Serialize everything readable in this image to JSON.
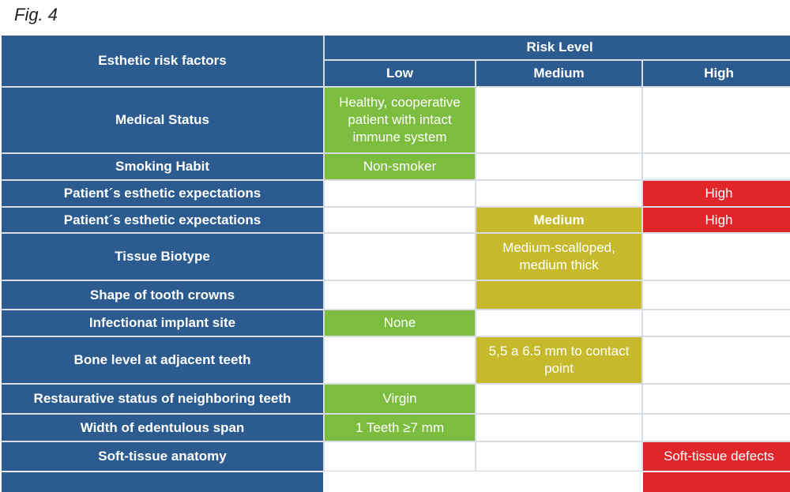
{
  "figure_label": "Fig. 4",
  "header": {
    "factors": "Esthetic risk factors",
    "risk_level": "Risk Level",
    "low": "Low",
    "medium": "Medium",
    "high": "High"
  },
  "colors": {
    "header_blue": "#2b5b8f",
    "low_green": "#7cbd3f",
    "medium_olive": "#c6ba2c",
    "high_red": "#e1262b"
  },
  "rows": [
    {
      "factor": "Medical Status",
      "low": "Healthy, cooperative patient with intact immune system",
      "medium": "",
      "high": ""
    },
    {
      "factor": "Smoking Habit",
      "low": "Non-smoker",
      "medium": "",
      "high": ""
    },
    {
      "factor": "Patient´s esthetic expectations",
      "low": "",
      "medium": "",
      "high": "High"
    },
    {
      "factor": "Patient´s esthetic expectations",
      "low": "",
      "medium": "Medium",
      "high": "High"
    },
    {
      "factor": "Tissue Biotype",
      "low": "",
      "medium": "Medium-scalloped, medium thick",
      "high": ""
    },
    {
      "factor": "Shape of tooth crowns",
      "low": "",
      "medium": "",
      "high": ""
    },
    {
      "factor": "Infectionat implant site",
      "low": "None",
      "medium": "",
      "high": ""
    },
    {
      "factor": "Bone level at adjacent teeth",
      "low": "",
      "medium": "5,5 a 6.5 mm to contact point",
      "high": ""
    },
    {
      "factor": "Restaurative status of neighboring teeth",
      "low": "Virgin",
      "medium": "",
      "high": ""
    },
    {
      "factor": "Width of edentulous span",
      "low": "1 Teeth ≥7 mm",
      "medium": "",
      "high": ""
    },
    {
      "factor": "Soft-tissue anatomy",
      "low": "",
      "medium": "",
      "high": "Soft-tissue defects"
    },
    {
      "factor": "",
      "low": "",
      "medium": "",
      "high": ""
    }
  ]
}
